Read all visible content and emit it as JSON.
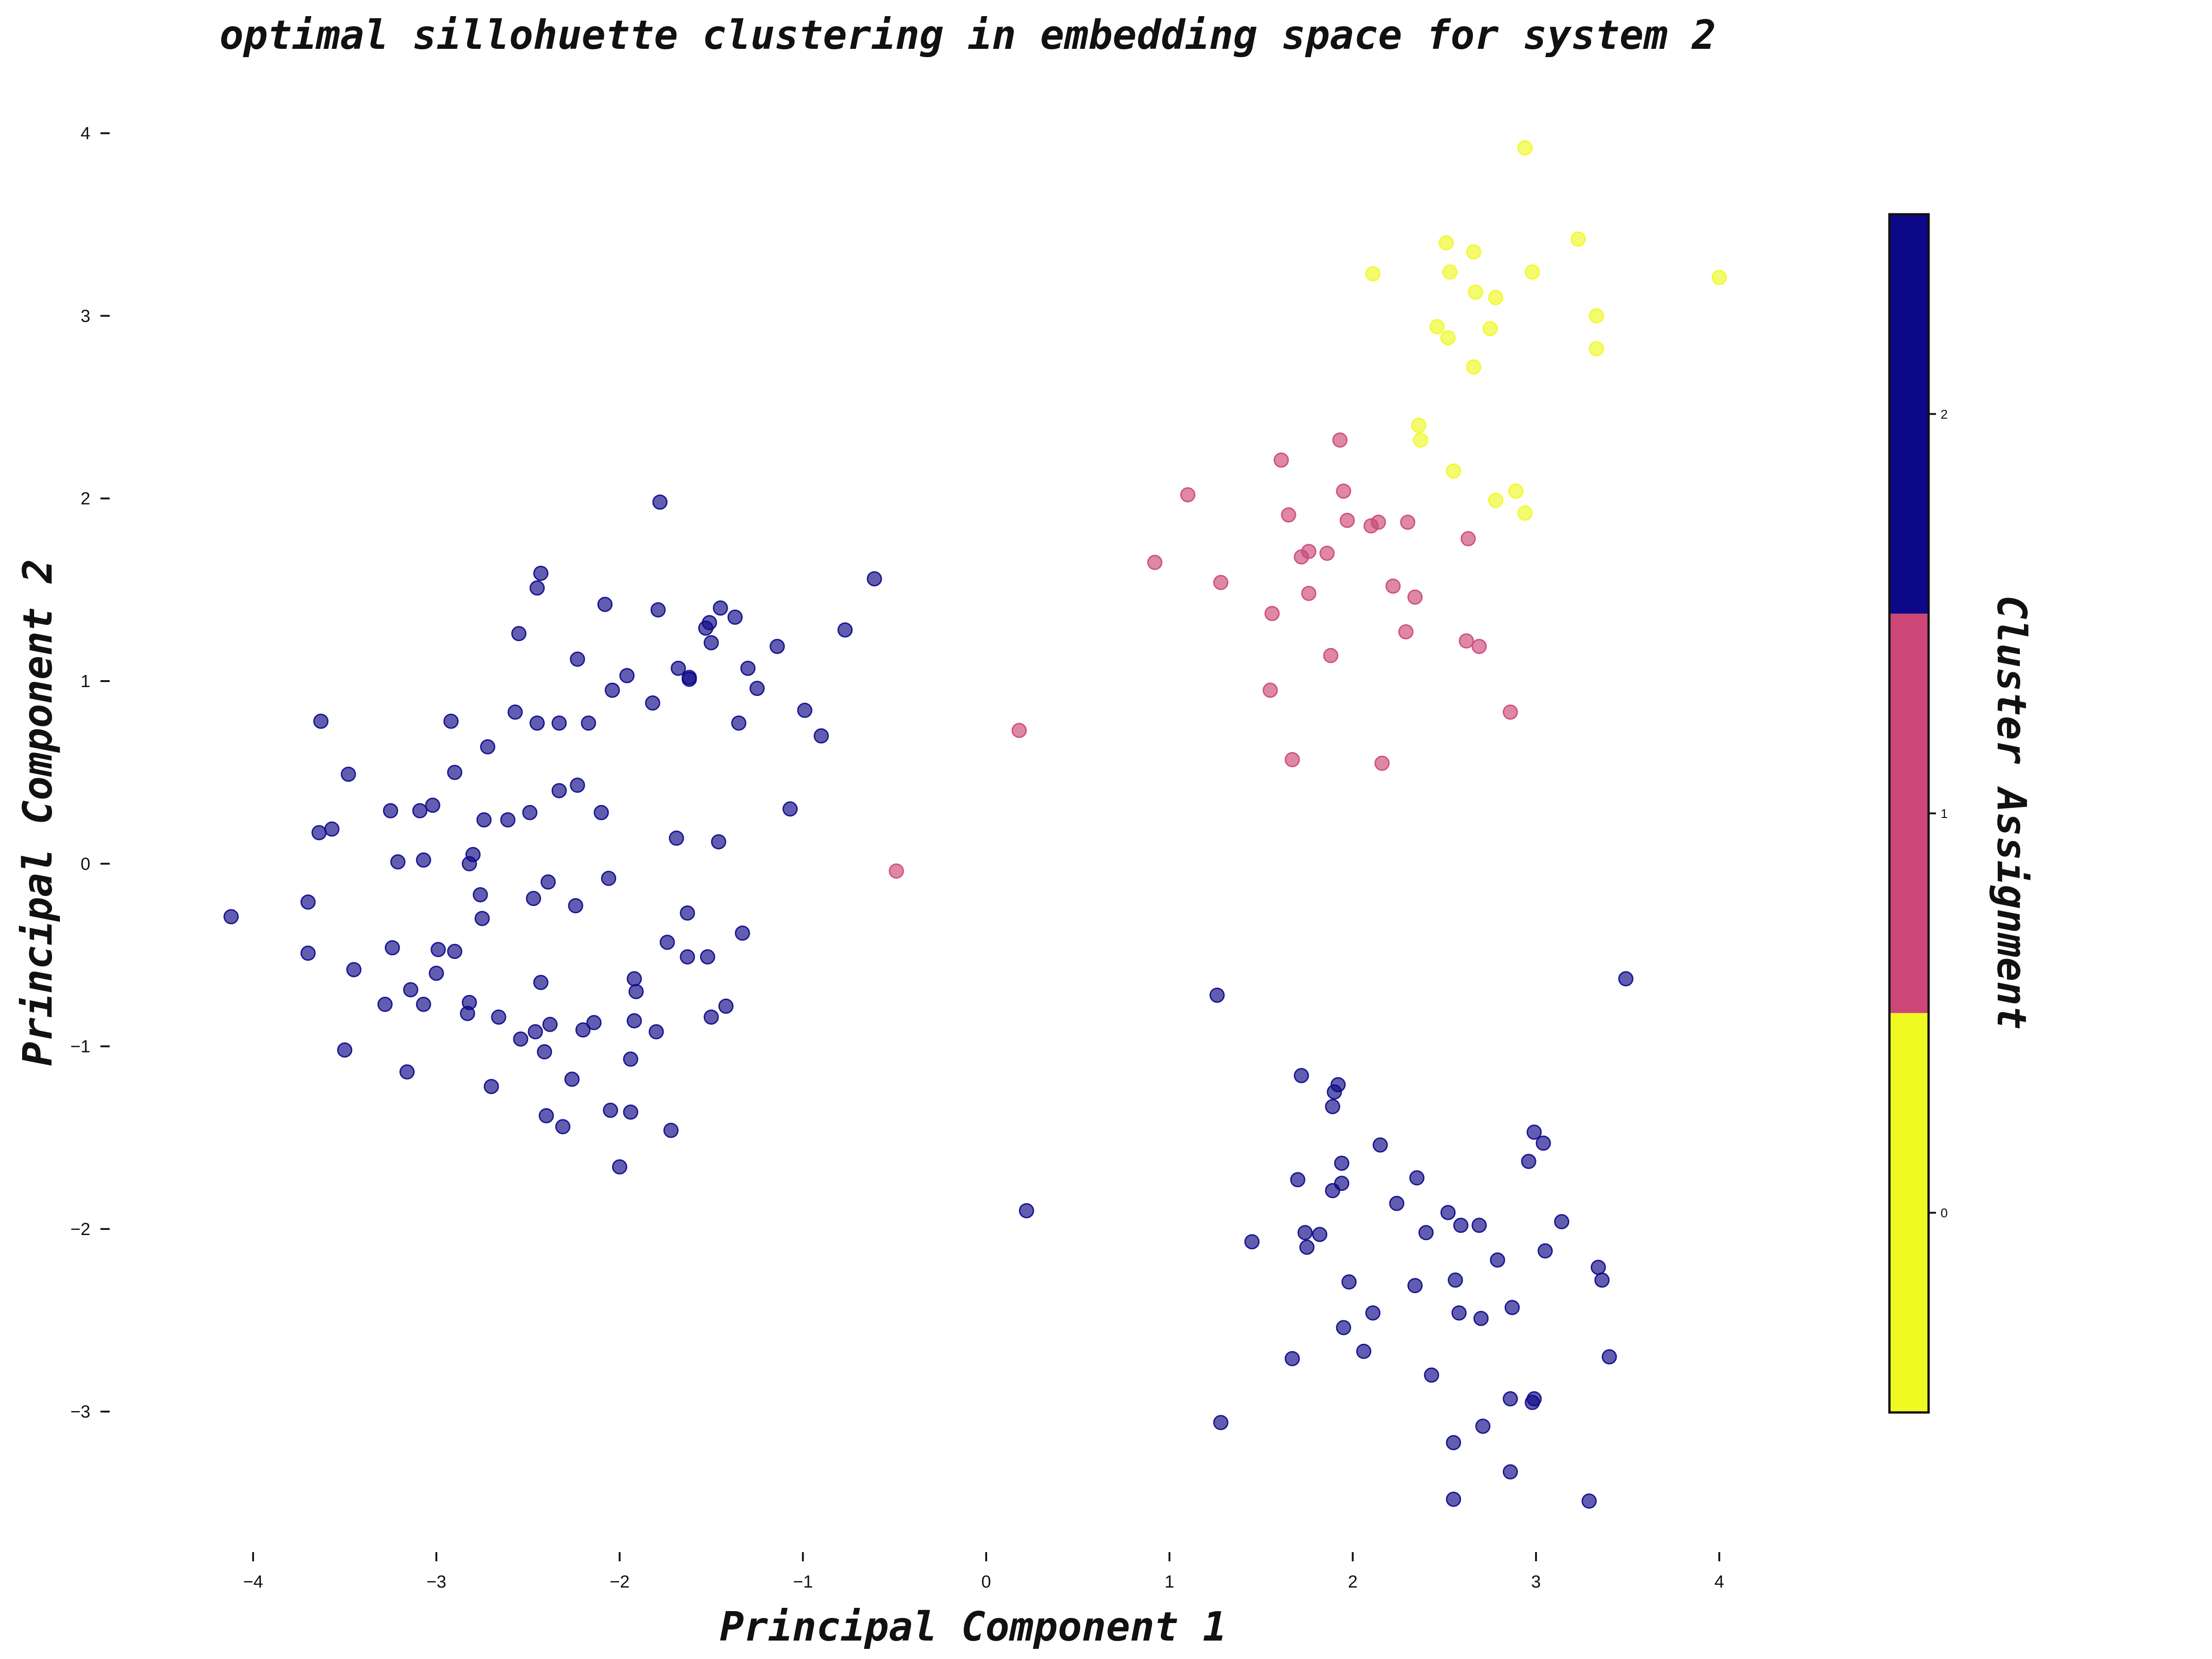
{
  "chart_data": {
    "type": "scatter",
    "title": "optimal sillohuette clustering in embedding space for system 2",
    "xlabel": "Principal Component 1",
    "ylabel": "Principal Component 2",
    "xlim": [
      -4.35,
      4.35
    ],
    "ylim": [
      -3.85,
      4.25
    ],
    "xticks": [
      -4,
      -3,
      -2,
      -1,
      0,
      1,
      2,
      3,
      4
    ],
    "yticks": [
      -3,
      -2,
      -1,
      0,
      1,
      2,
      3,
      4
    ],
    "grid": false,
    "colorbar": {
      "label": "Cluster Assignment",
      "range": [
        -0.5,
        2.5
      ],
      "ticks": [
        0,
        1,
        2
      ],
      "colors": [
        "#f0f921",
        "#cc4778",
        "#0d0887"
      ]
    },
    "point_alpha": 0.65,
    "series": [
      {
        "cluster": 0,
        "color": "#f0f921",
        "points": [
          [
            2.94,
            3.92
          ],
          [
            2.51,
            3.4
          ],
          [
            2.66,
            3.35
          ],
          [
            3.23,
            3.42
          ],
          [
            2.11,
            3.23
          ],
          [
            2.53,
            3.24
          ],
          [
            2.98,
            3.24
          ],
          [
            4.0,
            3.21
          ],
          [
            2.67,
            3.13
          ],
          [
            2.78,
            3.1
          ],
          [
            3.33,
            3.0
          ],
          [
            2.46,
            2.94
          ],
          [
            2.75,
            2.93
          ],
          [
            2.52,
            2.88
          ],
          [
            3.33,
            2.82
          ],
          [
            2.66,
            2.72
          ],
          [
            2.36,
            2.4
          ],
          [
            2.37,
            2.32
          ],
          [
            2.55,
            2.15
          ],
          [
            2.89,
            2.04
          ],
          [
            2.78,
            1.99
          ],
          [
            2.94,
            1.92
          ]
        ]
      },
      {
        "cluster": 1,
        "color": "#cc4778",
        "points": [
          [
            1.93,
            2.32
          ],
          [
            1.61,
            2.21
          ],
          [
            1.1,
            2.02
          ],
          [
            1.95,
            2.04
          ],
          [
            1.65,
            1.91
          ],
          [
            1.97,
            1.88
          ],
          [
            2.14,
            1.87
          ],
          [
            2.3,
            1.87
          ],
          [
            2.1,
            1.85
          ],
          [
            2.63,
            1.78
          ],
          [
            1.76,
            1.71
          ],
          [
            1.86,
            1.7
          ],
          [
            1.72,
            1.68
          ],
          [
            0.92,
            1.65
          ],
          [
            1.28,
            1.54
          ],
          [
            2.22,
            1.52
          ],
          [
            1.76,
            1.48
          ],
          [
            2.34,
            1.46
          ],
          [
            1.56,
            1.37
          ],
          [
            2.29,
            1.27
          ],
          [
            2.62,
            1.22
          ],
          [
            2.69,
            1.19
          ],
          [
            1.88,
            1.14
          ],
          [
            1.55,
            0.95
          ],
          [
            2.86,
            0.83
          ],
          [
            0.18,
            0.73
          ],
          [
            1.67,
            0.57
          ],
          [
            2.16,
            0.55
          ],
          [
            -0.49,
            -0.04
          ]
        ]
      },
      {
        "cluster": 2,
        "color": "#0d0887",
        "points": [
          [
            -1.78,
            1.98
          ],
          [
            -2.43,
            1.59
          ],
          [
            -0.61,
            1.56
          ],
          [
            -2.45,
            1.51
          ],
          [
            -2.08,
            1.42
          ],
          [
            -1.79,
            1.39
          ],
          [
            -1.45,
            1.4
          ],
          [
            -1.37,
            1.35
          ],
          [
            -1.53,
            1.29
          ],
          [
            -1.51,
            1.32
          ],
          [
            -0.77,
            1.28
          ],
          [
            -2.55,
            1.26
          ],
          [
            -1.5,
            1.21
          ],
          [
            -1.14,
            1.19
          ],
          [
            -2.23,
            1.12
          ],
          [
            -1.68,
            1.07
          ],
          [
            -1.3,
            1.07
          ],
          [
            -1.96,
            1.03
          ],
          [
            -1.62,
            1.01
          ],
          [
            -1.62,
            1.02
          ],
          [
            -1.25,
            0.96
          ],
          [
            -2.04,
            0.95
          ],
          [
            -1.82,
            0.88
          ],
          [
            -0.99,
            0.84
          ],
          [
            -2.57,
            0.83
          ],
          [
            -2.92,
            0.78
          ],
          [
            -3.63,
            0.78
          ],
          [
            -2.45,
            0.77
          ],
          [
            -2.33,
            0.77
          ],
          [
            -2.17,
            0.77
          ],
          [
            -1.35,
            0.77
          ],
          [
            -0.9,
            0.7
          ],
          [
            -2.72,
            0.64
          ],
          [
            -3.48,
            0.49
          ],
          [
            -2.9,
            0.5
          ],
          [
            -2.23,
            0.43
          ],
          [
            -2.33,
            0.4
          ],
          [
            -3.02,
            0.32
          ],
          [
            -1.07,
            0.3
          ],
          [
            -3.25,
            0.29
          ],
          [
            -3.09,
            0.29
          ],
          [
            -2.1,
            0.28
          ],
          [
            -2.49,
            0.28
          ],
          [
            -2.74,
            0.24
          ],
          [
            -2.61,
            0.24
          ],
          [
            -3.57,
            0.19
          ],
          [
            -3.64,
            0.17
          ],
          [
            -1.69,
            0.14
          ],
          [
            -1.46,
            0.12
          ],
          [
            -2.8,
            0.05
          ],
          [
            -3.21,
            0.01
          ],
          [
            -3.07,
            0.02
          ],
          [
            -2.82,
            0.0
          ],
          [
            -2.06,
            -0.08
          ],
          [
            -2.39,
            -0.1
          ],
          [
            -4.12,
            -0.29
          ],
          [
            -3.7,
            -0.21
          ],
          [
            -2.76,
            -0.17
          ],
          [
            -2.47,
            -0.19
          ],
          [
            -2.24,
            -0.23
          ],
          [
            -1.63,
            -0.27
          ],
          [
            -2.75,
            -0.3
          ],
          [
            -1.33,
            -0.38
          ],
          [
            -1.74,
            -0.43
          ],
          [
            -3.7,
            -0.49
          ],
          [
            -3.24,
            -0.46
          ],
          [
            -2.99,
            -0.47
          ],
          [
            -2.9,
            -0.48
          ],
          [
            -1.63,
            -0.51
          ],
          [
            -1.52,
            -0.51
          ],
          [
            -3.45,
            -0.58
          ],
          [
            -3.0,
            -0.6
          ],
          [
            -1.92,
            -0.63
          ],
          [
            -2.43,
            -0.65
          ],
          [
            -1.91,
            -0.7
          ],
          [
            -3.14,
            -0.69
          ],
          [
            -3.28,
            -0.77
          ],
          [
            -3.07,
            -0.77
          ],
          [
            -2.82,
            -0.76
          ],
          [
            -1.42,
            -0.78
          ],
          [
            -2.83,
            -0.82
          ],
          [
            -2.66,
            -0.84
          ],
          [
            -1.5,
            -0.84
          ],
          [
            -2.38,
            -0.88
          ],
          [
            -2.14,
            -0.87
          ],
          [
            -1.92,
            -0.86
          ],
          [
            -2.46,
            -0.92
          ],
          [
            -2.2,
            -0.91
          ],
          [
            -1.8,
            -0.92
          ],
          [
            -2.54,
            -0.96
          ],
          [
            -3.5,
            -1.02
          ],
          [
            -2.41,
            -1.03
          ],
          [
            -1.94,
            -1.07
          ],
          [
            -3.16,
            -1.14
          ],
          [
            -2.26,
            -1.18
          ],
          [
            -2.7,
            -1.22
          ],
          [
            -2.05,
            -1.35
          ],
          [
            -1.94,
            -1.36
          ],
          [
            -2.4,
            -1.38
          ],
          [
            -2.31,
            -1.44
          ],
          [
            -1.72,
            -1.46
          ],
          [
            -2.0,
            -1.66
          ],
          [
            0.22,
            -1.9
          ],
          [
            1.26,
            -0.72
          ],
          [
            3.49,
            -0.63
          ],
          [
            1.72,
            -1.16
          ],
          [
            1.92,
            -1.21
          ],
          [
            1.9,
            -1.25
          ],
          [
            1.89,
            -1.33
          ],
          [
            2.99,
            -1.47
          ],
          [
            3.04,
            -1.53
          ],
          [
            2.15,
            -1.54
          ],
          [
            2.96,
            -1.63
          ],
          [
            1.94,
            -1.64
          ],
          [
            1.7,
            -1.73
          ],
          [
            2.35,
            -1.72
          ],
          [
            1.94,
            -1.75
          ],
          [
            1.89,
            -1.79
          ],
          [
            2.24,
            -1.86
          ],
          [
            2.52,
            -1.91
          ],
          [
            3.14,
            -1.96
          ],
          [
            2.59,
            -1.98
          ],
          [
            2.69,
            -1.98
          ],
          [
            1.74,
            -2.02
          ],
          [
            1.82,
            -2.03
          ],
          [
            2.4,
            -2.02
          ],
          [
            1.45,
            -2.07
          ],
          [
            1.75,
            -2.1
          ],
          [
            3.05,
            -2.12
          ],
          [
            2.79,
            -2.17
          ],
          [
            3.34,
            -2.21
          ],
          [
            2.56,
            -2.28
          ],
          [
            1.98,
            -2.29
          ],
          [
            3.36,
            -2.28
          ],
          [
            2.34,
            -2.31
          ],
          [
            2.87,
            -2.43
          ],
          [
            2.11,
            -2.46
          ],
          [
            2.58,
            -2.46
          ],
          [
            2.7,
            -2.49
          ],
          [
            1.95,
            -2.54
          ],
          [
            2.06,
            -2.67
          ],
          [
            3.4,
            -2.7
          ],
          [
            1.67,
            -2.71
          ],
          [
            2.43,
            -2.8
          ],
          [
            2.86,
            -2.93
          ],
          [
            2.99,
            -2.93
          ],
          [
            2.98,
            -2.95
          ],
          [
            1.28,
            -3.06
          ],
          [
            2.71,
            -3.08
          ],
          [
            2.55,
            -3.17
          ],
          [
            2.86,
            -3.33
          ],
          [
            2.55,
            -3.48
          ],
          [
            3.29,
            -3.49
          ]
        ]
      }
    ]
  }
}
